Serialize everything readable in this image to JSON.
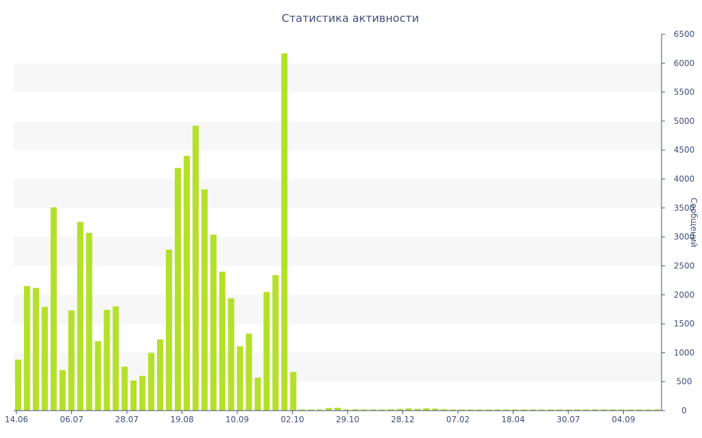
{
  "chart_data": {
    "type": "bar",
    "title": "Статистика активности",
    "xlabel": "",
    "ylabel": "Сообщений",
    "ylim": [
      0,
      6500
    ],
    "yticks": [
      0,
      500,
      1000,
      1500,
      2000,
      2500,
      3000,
      3500,
      4000,
      4500,
      5000,
      5500,
      6000,
      6500
    ],
    "x_tick_labels": [
      "14.06",
      "06.07",
      "28.07",
      "19.08",
      "10.09",
      "02.10",
      "29.10",
      "28.12",
      "07.02",
      "18.04",
      "30.07",
      "04.09"
    ],
    "grid": "alternating horizontal bands",
    "y_axis_position": "right",
    "bar_color": "#b5e02a",
    "values": [
      880,
      2150,
      2120,
      1790,
      3510,
      700,
      1730,
      3260,
      3070,
      1200,
      1740,
      1800,
      760,
      520,
      600,
      1000,
      1230,
      2780,
      4190,
      4400,
      4920,
      3820,
      3040,
      2400,
      1940,
      1110,
      1330,
      570,
      2050,
      2340,
      6170,
      670,
      20,
      20,
      20,
      45,
      50,
      20,
      25,
      20,
      20,
      20,
      25,
      30,
      40,
      30,
      40,
      35,
      25,
      20,
      20,
      20,
      20,
      20,
      20,
      20,
      20,
      20,
      20,
      20,
      20,
      20,
      20,
      20,
      20,
      20,
      20,
      20,
      20,
      20,
      20,
      20,
      20
    ]
  }
}
